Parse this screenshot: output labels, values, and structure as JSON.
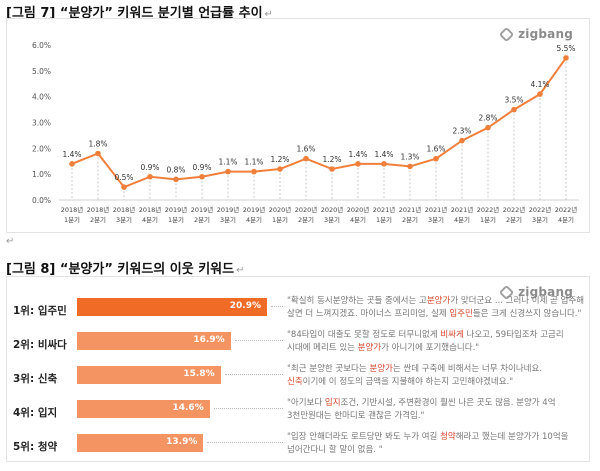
{
  "figure7": {
    "title": "[그림 7] “분양가” 키워드 분기별 언급률 추이",
    "mark": "↵",
    "logo": "zigbang"
  },
  "chart_data": {
    "type": "line",
    "categories": [
      "2018년 1분기",
      "2018년 2분기",
      "2018년 3분기",
      "2018년 4분기",
      "2019년 1분기",
      "2019년 2분기",
      "2019년 3분기",
      "2019년 4분기",
      "2020년 1분기",
      "2020년 2분기",
      "2020년 3분기",
      "2020년 4분기",
      "2021년 1분기",
      "2021년 2분기",
      "2021년 3분기",
      "2021년 4분기",
      "2022년 1분기",
      "2022년 2분기",
      "2022년 3분기",
      "2022년 4분기"
    ],
    "x_ticks_line1": [
      "2018년",
      "2018년",
      "2018년",
      "2018년",
      "2019년",
      "2019년",
      "2019년",
      "2019년",
      "2020년",
      "2020년",
      "2020년",
      "2020년",
      "2021년",
      "2021년",
      "2021년",
      "2021년",
      "2022년",
      "2022년",
      "2022년",
      "2022년"
    ],
    "x_ticks_line2": [
      "1분기",
      "2분기",
      "3분기",
      "4분기",
      "1분기",
      "2분기",
      "3분기",
      "4분기",
      "1분기",
      "2분기",
      "3분기",
      "4분기",
      "1분기",
      "2분기",
      "3분기",
      "4분기",
      "1분기",
      "2분기",
      "3분기",
      "4분기"
    ],
    "values": [
      1.4,
      1.8,
      0.5,
      0.9,
      0.8,
      0.9,
      1.1,
      1.1,
      1.2,
      1.6,
      1.2,
      1.4,
      1.4,
      1.3,
      1.6,
      2.3,
      2.8,
      3.5,
      4.1,
      5.5
    ],
    "data_labels": [
      "1.4%",
      "1.8%",
      "0.5%",
      "0.9%",
      "0.8%",
      "0.9%",
      "1.1%",
      "1.1%",
      "1.2%",
      "1.6%",
      "1.2%",
      "1.4%",
      "1.4%",
      "1.3%",
      "1.6%",
      "2.3%",
      "2.8%",
      "3.5%",
      "4.1%",
      "5.5%"
    ],
    "y_ticks": [
      "0.0%",
      "1.0%",
      "2.0%",
      "3.0%",
      "4.0%",
      "5.0%",
      "6.0%"
    ],
    "ylim": [
      0,
      6
    ],
    "grid": false,
    "color": "#f07f3c"
  },
  "figure8": {
    "title": "[그림 8] “분양가” 키워드의 이웃 키워드",
    "mark": "↵",
    "logo": "zigbang",
    "rows": [
      {
        "label": "1위: 입주민",
        "value": 20.9,
        "value_label": "20.9%",
        "color": "#f06b25",
        "q1_a": "\"확실히 동시분양하는 곳들 중에서는 고",
        "q1_hl": "분양가",
        "q1_b": "가 맞더군요 ... 그러나 이제 곧 입주해",
        "q2_a": "살면 더 느껴지겠죠. 마이너스 프리미엄, 실제 ",
        "q2_hl": "입주민",
        "q2_b": "들은 크게 신경쓰지 않습니다.\""
      },
      {
        "label": "2위: 비싸다",
        "value": 16.9,
        "value_label": "16.9%",
        "color": "#f59463",
        "q1_a": "\"84타입이 대출도 못할 정도로 터무니없게 ",
        "q1_hl": "비싸게",
        "q1_b": " 나오고, 59타입조차 고금리",
        "q2_a": "시대에 메리트 있는 ",
        "q2_hl": "분양가",
        "q2_b": "가 아니기에 포기했습니다.\""
      },
      {
        "label": "3위: 신축",
        "value": 15.8,
        "value_label": "15.8%",
        "color": "#f59463",
        "q1_a": "\"최근 분양한 곳보다는 ",
        "q1_hl": "분양가",
        "q1_b": "는 싼데 구축에 비해서는 너무 차이나네요.",
        "q2_a": "",
        "q2_hl": "신축",
        "q2_b": "이기에 이 정도의 금액을 지불해야 하는지 고민해야겠네요.\""
      },
      {
        "label": "4위: 입지",
        "value": 14.6,
        "value_label": "14.6%",
        "color": "#f59463",
        "q1_a": "\"아기보다 ",
        "q1_hl": "입지",
        "q1_b": "조건, 기반시설, 주변환경이 훨씬 나은 곳도 많음. 분양가 4억",
        "q2_a": "3천만원대는 한마디로 괜찮은 가격임.\"",
        "q2_hl": "",
        "q2_b": ""
      },
      {
        "label": "5위: 청약",
        "value": 13.9,
        "value_label": "13.9%",
        "color": "#f59463",
        "q1_a": "\"입장 안해더라도 로트당만 봐도 누가 여길 ",
        "q1_hl": "청약",
        "q1_b": "해라고 했는데 분양가가 10억을",
        "q2_a": "넘어간다니 할 말이 없음. \"",
        "q2_hl": "",
        "q2_b": ""
      }
    ]
  }
}
